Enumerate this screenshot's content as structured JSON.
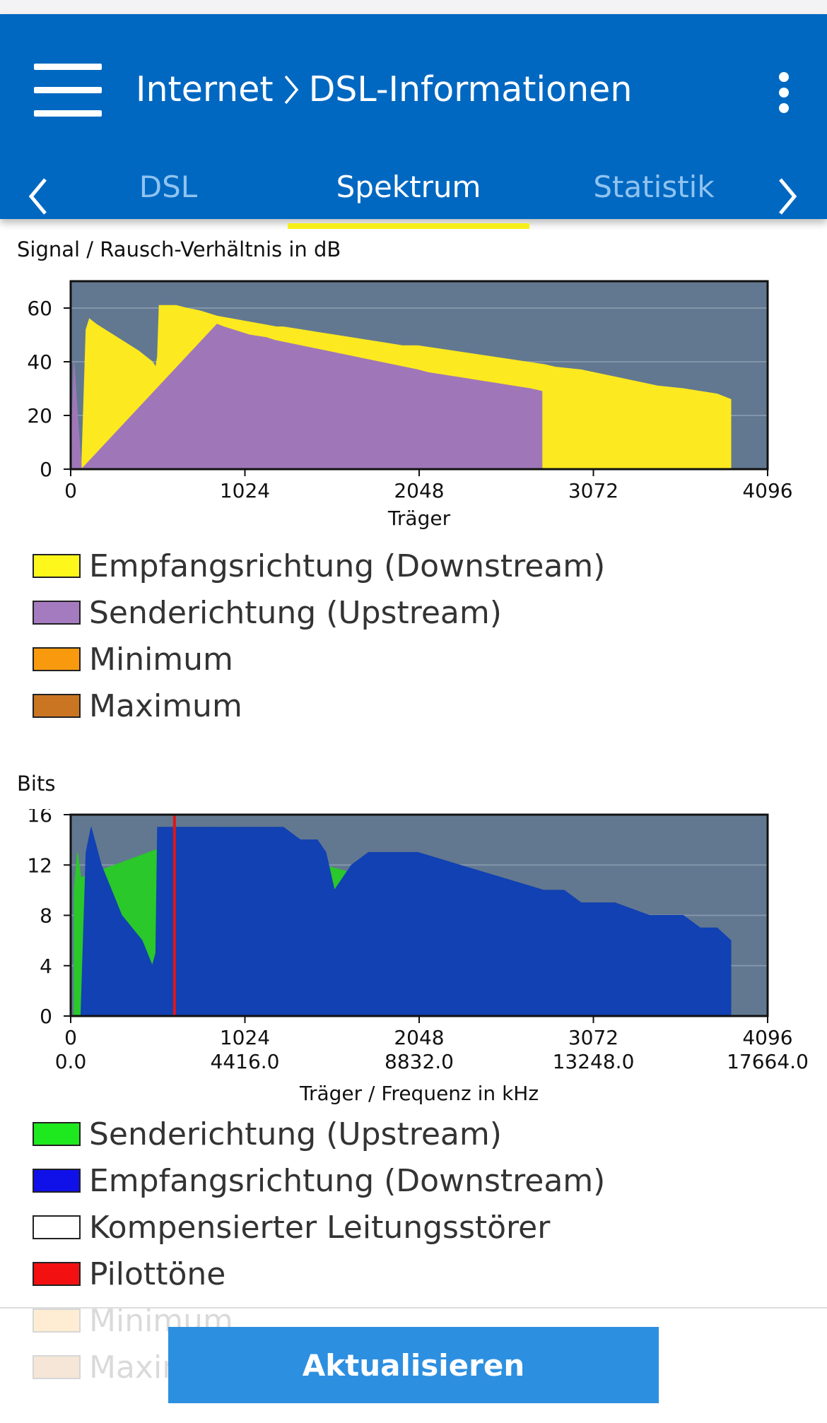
{
  "header": {
    "breadcrumb_parent": "Internet",
    "breadcrumb_current": "DSL-Informationen"
  },
  "tabs": [
    {
      "label": "DSL",
      "active": false
    },
    {
      "label": "Spektrum",
      "active": true
    },
    {
      "label": "Statistik",
      "active": false
    }
  ],
  "colors": {
    "appbar": "#0068c1",
    "tab_indicator": "#f7ef1a",
    "plot_bg": "#627890",
    "snr_down": "#fde91f",
    "snr_up": "#9f77b8",
    "bits_up": "#2ac82a",
    "bits_down": "#1241b3",
    "pilot": "#e41515"
  },
  "chart_data": [
    {
      "type": "area",
      "title": "Signal / Rausch-Verhältnis in dB",
      "xlabel": "Träger",
      "ylabel": "",
      "xlim": [
        0,
        4096
      ],
      "ylim": [
        0,
        70
      ],
      "xticks": [
        0,
        1024,
        2048,
        3072,
        4096
      ],
      "yticks": [
        0,
        20,
        40,
        60
      ],
      "series": [
        {
          "name": "Empfangsrichtung (Downstream)",
          "color": "#fde91f",
          "x": [
            64,
            90,
            110,
            150,
            200,
            300,
            400,
            480,
            500,
            510,
            520,
            620,
            680,
            760,
            860,
            1210,
            1250,
            1350,
            1450,
            1550,
            1650,
            1750,
            1850,
            1950,
            2040,
            2780,
            2850,
            3000,
            3150,
            3300,
            3450,
            3600,
            3800,
            3880
          ],
          "y": [
            0,
            52,
            56,
            54,
            52,
            48,
            44,
            40,
            38,
            42,
            61,
            61,
            60,
            59,
            57,
            53,
            53,
            52,
            51,
            50,
            49,
            48,
            47,
            46,
            46,
            39,
            38,
            37,
            35,
            33,
            31,
            30,
            28,
            26
          ]
        },
        {
          "name": "Senderichtung (Upstream)",
          "color": "#9f77b8",
          "x": [
            0,
            20,
            40,
            64,
            860,
            900,
            950,
            1050,
            1150,
            1200,
            2040,
            2100,
            2200,
            2300,
            2400,
            2500,
            2600,
            2700,
            2770
          ],
          "y": [
            0,
            40,
            20,
            0,
            54,
            53,
            52,
            50,
            49,
            48,
            37,
            36,
            35,
            34,
            33,
            32,
            31,
            30,
            29
          ]
        },
        {
          "name": "Minimum",
          "color": "#f79a12",
          "x": [],
          "y": []
        },
        {
          "name": "Maximum",
          "color": "#c57a29",
          "x": [],
          "y": []
        }
      ]
    },
    {
      "type": "area",
      "title": "Bits",
      "xlabel": "Träger / Frequenz in kHz",
      "ylabel": "",
      "xlim": [
        0,
        4096
      ],
      "ylim": [
        0,
        16
      ],
      "xticks": [
        0,
        1024,
        2048,
        3072,
        4096
      ],
      "xticks_secondary": [
        "0.0",
        "4416.0",
        "8832.0",
        "13248.0",
        "17664.0"
      ],
      "yticks": [
        0,
        4,
        8,
        12,
        16
      ],
      "series": [
        {
          "name": "Senderichtung (Upstream)",
          "color": "#2ac82a",
          "x": [
            20,
            40,
            60,
            860,
            1000,
            1100,
            1200,
            2040,
            2100,
            2250,
            2400,
            2650,
            2770
          ],
          "y": [
            10,
            13,
            11,
            15,
            15,
            13,
            13,
            10,
            10,
            9,
            9,
            8,
            7
          ]
        },
        {
          "name": "Empfangsrichtung (Downstream)",
          "color": "#1241b3",
          "x": [
            60,
            90,
            120,
            180,
            240,
            300,
            360,
            420,
            480,
            500,
            510,
            520,
            600,
            700,
            860,
            1210,
            1250,
            1350,
            1450,
            1500,
            1550,
            1650,
            1750,
            1850,
            1950,
            2040,
            2780,
            2900,
            3000,
            3200,
            3400,
            3600,
            3700,
            3800,
            3880
          ],
          "y": [
            0,
            13,
            15,
            12,
            10,
            8,
            7,
            6,
            4,
            5,
            15,
            15,
            15,
            15,
            15,
            15,
            15,
            14,
            14,
            13,
            10,
            12,
            13,
            13,
            13,
            13,
            10,
            10,
            9,
            9,
            8,
            8,
            7,
            7,
            6
          ]
        },
        {
          "name": "Kompensierter Leitungsstörer",
          "color": "#ffffff",
          "x": [],
          "y": []
        },
        {
          "name": "Pilottöne",
          "color": "#e41515",
          "x": [
            610
          ],
          "y": [
            16
          ]
        },
        {
          "name": "Minimum",
          "color": "#f79a12",
          "x": [],
          "y": []
        },
        {
          "name": "Maximum",
          "color": "#c57a29",
          "x": [],
          "y": []
        }
      ]
    }
  ],
  "legend_snr": [
    {
      "label": "Empfangsrichtung (Downstream)",
      "color": "#fdf71c"
    },
    {
      "label": "Senderichtung (Upstream)",
      "color": "#a57bc0"
    },
    {
      "label": "Minimum",
      "color": "#f99a0e"
    },
    {
      "label": "Maximum",
      "color": "#c97522"
    }
  ],
  "legend_bits": [
    {
      "label": "Senderichtung (Upstream)",
      "color": "#1ee81e"
    },
    {
      "label": "Empfangsrichtung (Downstream)",
      "color": "#1010e8"
    },
    {
      "label": "Kompensierter Leitungsstörer",
      "color": "#ffffff"
    },
    {
      "label": "Pilottöne",
      "color": "#f21010"
    },
    {
      "label": "Minimum",
      "color": "#f99a0e"
    },
    {
      "label": "Maximum",
      "color": "#c97522"
    }
  ],
  "footer": {
    "refresh_label": "Aktualisieren"
  }
}
